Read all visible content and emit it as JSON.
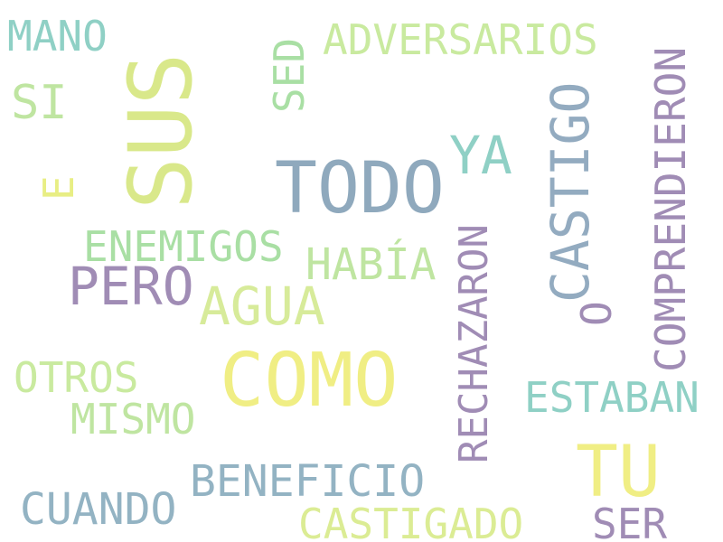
{
  "words": [
    {
      "text": "TODO",
      "color": "#8fa9bd",
      "orientation": "horizontal"
    },
    {
      "text": "COMO",
      "color": "#f0ee84",
      "orientation": "horizontal"
    },
    {
      "text": "SUS",
      "color": "#d9e88a",
      "orientation": "vertical"
    },
    {
      "text": "TU",
      "color": "#f0ee84",
      "orientation": "horizontal"
    },
    {
      "text": "CASTIGO",
      "color": "#93abc0",
      "orientation": "vertical"
    },
    {
      "text": "RECHAZARON",
      "color": "#a08cb5",
      "orientation": "vertical"
    },
    {
      "text": "COMPRENDIERON",
      "color": "#a08cb5",
      "orientation": "vertical"
    },
    {
      "text": "AGUA",
      "color": "#d7eb9a",
      "orientation": "horizontal"
    },
    {
      "text": "PERO",
      "color": "#a08cb5",
      "orientation": "horizontal"
    },
    {
      "text": "ENEMIGOS",
      "color": "#a9dfa4",
      "orientation": "horizontal"
    },
    {
      "text": "HABÍA",
      "color": "#bfe5a1",
      "orientation": "horizontal"
    },
    {
      "text": "ESTABAN",
      "color": "#8fd0c5",
      "orientation": "horizontal"
    },
    {
      "text": "BENEFICIO",
      "color": "#93b3c3",
      "orientation": "horizontal"
    },
    {
      "text": "CASTIGADO",
      "color": "#dbec94",
      "orientation": "horizontal"
    },
    {
      "text": "CUANDO",
      "color": "#93b3c3",
      "orientation": "horizontal"
    },
    {
      "text": "MISMO",
      "color": "#bfe5a1",
      "orientation": "horizontal"
    },
    {
      "text": "OTROS",
      "color": "#c9ea9f",
      "orientation": "horizontal"
    },
    {
      "text": "ADVERSARIOS",
      "color": "#c9ea9f",
      "orientation": "horizontal"
    },
    {
      "text": "YA",
      "color": "#8fd0c5",
      "orientation": "horizontal"
    },
    {
      "text": "SED",
      "color": "#a9dfa4",
      "orientation": "vertical"
    },
    {
      "text": "MANO",
      "color": "#8fd0c5",
      "orientation": "horizontal"
    },
    {
      "text": "SI",
      "color": "#bfe5a1",
      "orientation": "horizontal"
    },
    {
      "text": "E",
      "color": "#e8ee84",
      "orientation": "vertical"
    },
    {
      "text": "O",
      "color": "#a08cb5",
      "orientation": "vertical"
    },
    {
      "text": "SER",
      "color": "#a08cb5",
      "orientation": "horizontal"
    }
  ]
}
